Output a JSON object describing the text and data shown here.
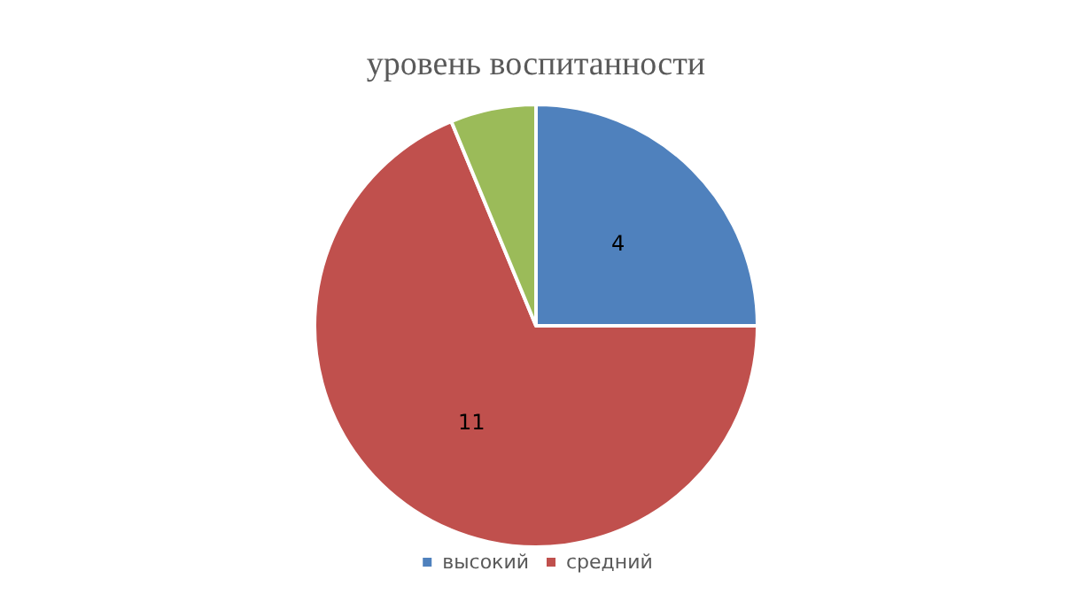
{
  "chart_data": {
    "type": "pie",
    "title": "уровень воспитанности",
    "categories": [
      "высокий",
      "средний",
      null
    ],
    "values": [
      4,
      11,
      1
    ],
    "colors": [
      "#4f81bd",
      "#c0504d",
      "#9bbb59"
    ],
    "value_labels": [
      "4",
      "11",
      null
    ],
    "legend": "bottom"
  }
}
